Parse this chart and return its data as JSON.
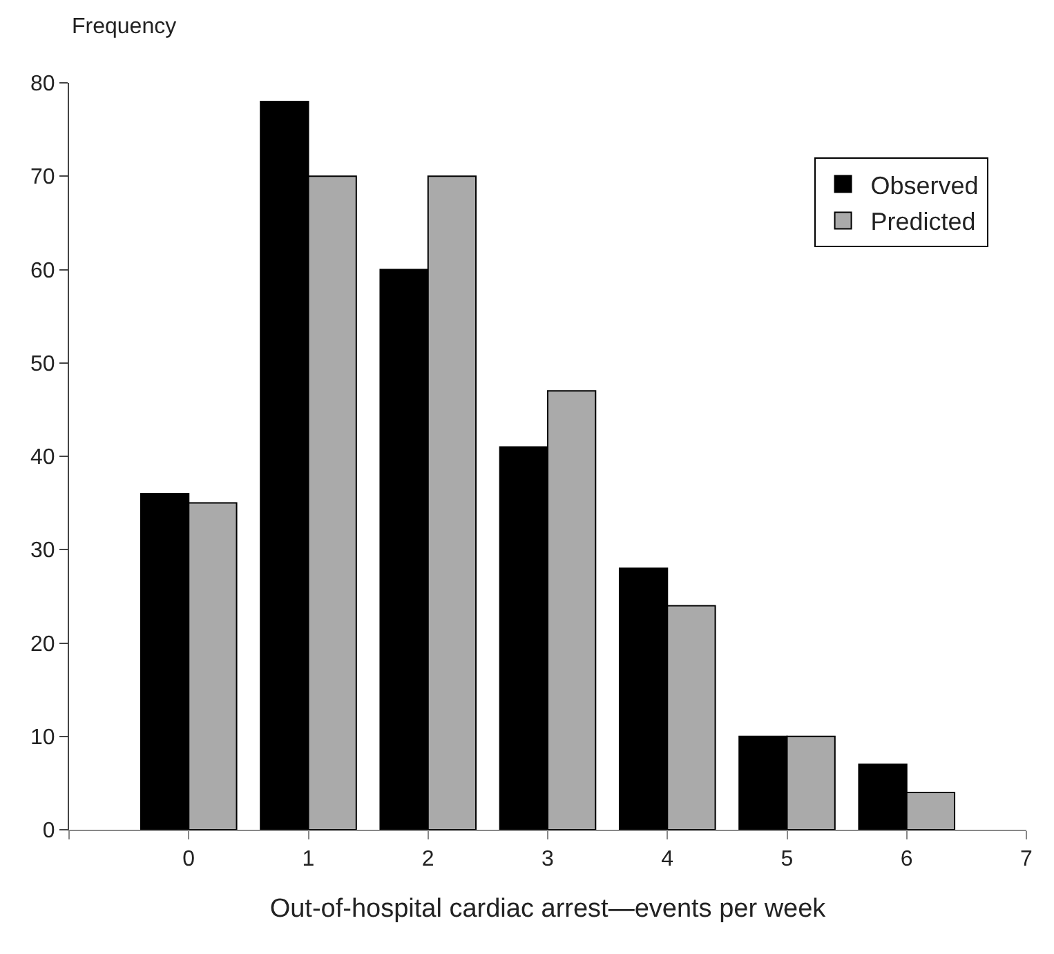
{
  "chart_data": {
    "type": "bar",
    "xlabel": "Out-of-hospital cardiac arrest—events per week",
    "ylabel": "Frequency",
    "x": [
      0,
      1,
      2,
      3,
      4,
      5,
      6
    ],
    "series": [
      {
        "name": "Observed",
        "color": "#000000",
        "values": [
          36,
          78,
          60,
          41,
          28,
          10,
          7
        ]
      },
      {
        "name": "Predicted",
        "color": "#aaaaaa",
        "values": [
          35,
          70,
          70,
          47,
          24,
          10,
          4
        ]
      }
    ],
    "xlim": [
      -1,
      7
    ],
    "xticks": [
      {
        "value": -1,
        "label": null
      },
      0,
      1,
      2,
      3,
      4,
      5,
      6,
      7
    ],
    "ylim": [
      0,
      80
    ],
    "yticks": [
      0,
      10,
      20,
      30,
      40,
      50,
      60,
      70,
      80
    ],
    "legend": "top right"
  }
}
